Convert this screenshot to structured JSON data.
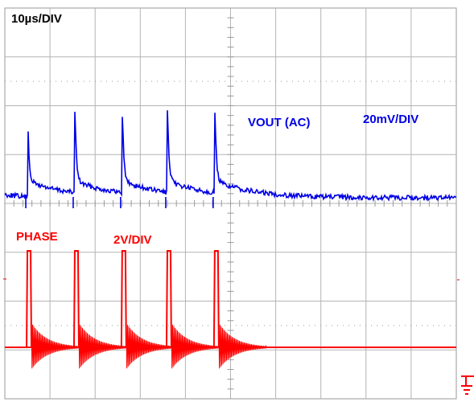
{
  "chart_data": {
    "type": "line",
    "title": "",
    "grid": true,
    "timebase_label": "10µs/DIV",
    "series": [
      {
        "name": "VOUT (AC)",
        "scale_label": "20mV/DIV",
        "color": "#0000e6",
        "pulse_times_div": [
          0.5,
          1.55,
          2.6,
          3.6,
          4.65
        ],
        "baseline_div": 1.1,
        "spike_peak_div": 1.8,
        "settle_div": 1.35
      },
      {
        "name": "PHASE",
        "scale_label": "2V/DIV",
        "color": "#ff0000",
        "pulse_times_div": [
          0.5,
          1.55,
          2.6,
          3.6,
          4.65
        ],
        "pulse_width_div": 0.06,
        "baseline_div": 0,
        "high_div": 2.0,
        "ringing_amplitude_div": 0.5
      }
    ],
    "xlim_div": [
      0,
      10
    ],
    "ylim_div": [
      -4,
      4
    ]
  },
  "icons": {
    "ground_marker": "ground-icon"
  }
}
